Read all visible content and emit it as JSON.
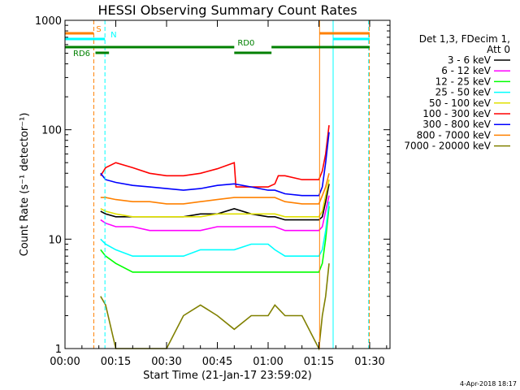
{
  "chart_data": {
    "type": "line",
    "title": "HESSI Observing Summary Count Rates",
    "xlabel": "Start Time (21-Jan-17 23:59:02)",
    "ylabel": "Count Rate (s⁻¹ detector⁻¹)",
    "x_unit": "minutes from start time",
    "y_scale": "log",
    "xlim": [
      0,
      96
    ],
    "ylim": [
      1,
      1000
    ],
    "x_ticks": [
      {
        "value": 0,
        "label": "00:00"
      },
      {
        "value": 15,
        "label": "00:15"
      },
      {
        "value": 30,
        "label": "00:30"
      },
      {
        "value": 45,
        "label": "00:45"
      },
      {
        "value": 60,
        "label": "01:00"
      },
      {
        "value": 75,
        "label": "01:15"
      },
      {
        "value": 90,
        "label": "01:30"
      }
    ],
    "y_ticks": [
      {
        "value": 1,
        "label": "1"
      },
      {
        "value": 10,
        "label": "10"
      },
      {
        "value": 100,
        "label": "100"
      },
      {
        "value": 1000,
        "label": "1000"
      }
    ],
    "legend_header": [
      "Det 1,3, FDecim 1,",
      "Att 0"
    ],
    "legend_position": "right",
    "series": [
      {
        "name": "3 - 6 keV",
        "color": "#000000",
        "points": [
          [
            10.5,
            18
          ],
          [
            12,
            17
          ],
          [
            15,
            16
          ],
          [
            20,
            16
          ],
          [
            25,
            16
          ],
          [
            30,
            16
          ],
          [
            35,
            16
          ],
          [
            40,
            17
          ],
          [
            45,
            17
          ],
          [
            50,
            19
          ],
          [
            55,
            17
          ],
          [
            60,
            16
          ],
          [
            62,
            16
          ],
          [
            65,
            15
          ],
          [
            70,
            15
          ],
          [
            75,
            15
          ],
          [
            76,
            16
          ],
          [
            77,
            22
          ],
          [
            78,
            32
          ]
        ]
      },
      {
        "name": "6 - 12 keV",
        "color": "#ff00ff",
        "points": [
          [
            10.5,
            15
          ],
          [
            12,
            14
          ],
          [
            15,
            13
          ],
          [
            20,
            13
          ],
          [
            25,
            12
          ],
          [
            30,
            12
          ],
          [
            35,
            12
          ],
          [
            40,
            12
          ],
          [
            45,
            13
          ],
          [
            50,
            13
          ],
          [
            55,
            13
          ],
          [
            60,
            13
          ],
          [
            62,
            13
          ],
          [
            65,
            12
          ],
          [
            70,
            12
          ],
          [
            75,
            12
          ],
          [
            76,
            13
          ],
          [
            77,
            18
          ],
          [
            78,
            25
          ]
        ]
      },
      {
        "name": "12 - 25 keV",
        "color": "#00ff00",
        "points": [
          [
            10.5,
            8
          ],
          [
            12,
            7
          ],
          [
            15,
            6
          ],
          [
            20,
            5
          ],
          [
            25,
            5
          ],
          [
            30,
            5
          ],
          [
            35,
            5
          ],
          [
            40,
            5
          ],
          [
            45,
            5
          ],
          [
            50,
            5
          ],
          [
            55,
            5
          ],
          [
            60,
            5
          ],
          [
            62,
            5
          ],
          [
            65,
            5
          ],
          [
            70,
            5
          ],
          [
            75,
            5
          ],
          [
            76,
            6
          ],
          [
            77,
            10
          ],
          [
            78,
            20
          ]
        ]
      },
      {
        "name": "25 - 50 keV",
        "color": "#00ffff",
        "points": [
          [
            10.5,
            10
          ],
          [
            12,
            9
          ],
          [
            15,
            8
          ],
          [
            20,
            7
          ],
          [
            25,
            7
          ],
          [
            30,
            7
          ],
          [
            35,
            7
          ],
          [
            40,
            8
          ],
          [
            45,
            8
          ],
          [
            50,
            8
          ],
          [
            55,
            9
          ],
          [
            60,
            9
          ],
          [
            62,
            8
          ],
          [
            65,
            7
          ],
          [
            70,
            7
          ],
          [
            75,
            7
          ],
          [
            76,
            8
          ],
          [
            77,
            12
          ],
          [
            78,
            22
          ]
        ]
      },
      {
        "name": "50 - 100 keV",
        "color": "#e0e000",
        "points": [
          [
            10.5,
            19
          ],
          [
            12,
            18
          ],
          [
            15,
            17
          ],
          [
            20,
            16
          ],
          [
            25,
            16
          ],
          [
            30,
            16
          ],
          [
            35,
            16
          ],
          [
            40,
            16
          ],
          [
            45,
            17
          ],
          [
            50,
            17
          ],
          [
            55,
            17
          ],
          [
            60,
            17
          ],
          [
            62,
            17
          ],
          [
            65,
            16
          ],
          [
            70,
            16
          ],
          [
            75,
            16
          ],
          [
            76,
            18
          ],
          [
            77,
            25
          ],
          [
            78,
            35
          ]
        ]
      },
      {
        "name": "100 - 300 keV",
        "color": "#ff0000",
        "points": [
          [
            10.5,
            38
          ],
          [
            12,
            45
          ],
          [
            15,
            50
          ],
          [
            20,
            45
          ],
          [
            25,
            40
          ],
          [
            30,
            38
          ],
          [
            35,
            38
          ],
          [
            40,
            40
          ],
          [
            45,
            44
          ],
          [
            50,
            50
          ],
          [
            50.5,
            30
          ],
          [
            55,
            30
          ],
          [
            60,
            30
          ],
          [
            62,
            32
          ],
          [
            63,
            38
          ],
          [
            65,
            38
          ],
          [
            70,
            35
          ],
          [
            75,
            35
          ],
          [
            76,
            42
          ],
          [
            77,
            60
          ],
          [
            78,
            110
          ]
        ]
      },
      {
        "name": "300 - 800 keV",
        "color": "#0000ff",
        "points": [
          [
            10.5,
            40
          ],
          [
            12,
            35
          ],
          [
            15,
            33
          ],
          [
            20,
            31
          ],
          [
            25,
            30
          ],
          [
            30,
            29
          ],
          [
            35,
            28
          ],
          [
            40,
            29
          ],
          [
            45,
            31
          ],
          [
            50,
            32
          ],
          [
            55,
            30
          ],
          [
            60,
            28
          ],
          [
            62,
            28
          ],
          [
            65,
            26
          ],
          [
            70,
            25
          ],
          [
            75,
            25
          ],
          [
            76,
            30
          ],
          [
            77,
            50
          ],
          [
            78,
            95
          ]
        ]
      },
      {
        "name": "800 - 7000 keV",
        "color": "#ff8000",
        "points": [
          [
            10.5,
            24
          ],
          [
            12,
            24
          ],
          [
            15,
            23
          ],
          [
            20,
            22
          ],
          [
            25,
            22
          ],
          [
            30,
            21
          ],
          [
            35,
            21
          ],
          [
            40,
            22
          ],
          [
            45,
            23
          ],
          [
            50,
            24
          ],
          [
            55,
            24
          ],
          [
            60,
            24
          ],
          [
            62,
            24
          ],
          [
            65,
            22
          ],
          [
            70,
            21
          ],
          [
            75,
            21
          ],
          [
            76,
            25
          ],
          [
            77,
            30
          ],
          [
            78,
            40
          ]
        ]
      },
      {
        "name": "7000 - 20000 keV",
        "color": "#808000",
        "points": [
          [
            10.5,
            3
          ],
          [
            12,
            2.5
          ],
          [
            15,
            1
          ],
          [
            20,
            1
          ],
          [
            25,
            1
          ],
          [
            30,
            1
          ],
          [
            35,
            2
          ],
          [
            40,
            2.5
          ],
          [
            45,
            2
          ],
          [
            50,
            1.5
          ],
          [
            55,
            2
          ],
          [
            60,
            2
          ],
          [
            62,
            2.5
          ],
          [
            65,
            2
          ],
          [
            70,
            2
          ],
          [
            75,
            1
          ],
          [
            76,
            2
          ],
          [
            77,
            3
          ],
          [
            78,
            6
          ]
        ]
      }
    ],
    "vertical_markers": [
      {
        "x": 8.5,
        "color": "#ff8000",
        "style": "dashed"
      },
      {
        "x": 11.8,
        "color": "#00ffff",
        "style": "dashed"
      },
      {
        "x": 75.2,
        "color": "#ff8000",
        "style": "solid"
      },
      {
        "x": 79.2,
        "color": "#00ffff",
        "style": "solid"
      },
      {
        "x": 89.7,
        "color": "#00ffff",
        "style": "dashed"
      },
      {
        "x": 89.9,
        "color": "#ff8000",
        "style": "dashed"
      }
    ],
    "flag_bars": [
      {
        "label": "S",
        "color": "#ff8000",
        "segments": [
          [
            0,
            8.5
          ],
          [
            75.2,
            90
          ]
        ]
      },
      {
        "label": "N",
        "color": "#00ffff",
        "segments": [
          [
            0,
            11.8
          ],
          [
            79.2,
            90
          ]
        ]
      },
      {
        "label": "RD0",
        "color": "#008000",
        "segments": [
          [
            0,
            50
          ],
          [
            61,
            90
          ]
        ]
      },
      {
        "label": "RD6",
        "color": "#008000",
        "segments": [
          [
            9,
            13
          ],
          [
            50,
            61
          ]
        ]
      }
    ]
  },
  "footer": {
    "timestamp": "4-Apr-2018 18:17"
  }
}
